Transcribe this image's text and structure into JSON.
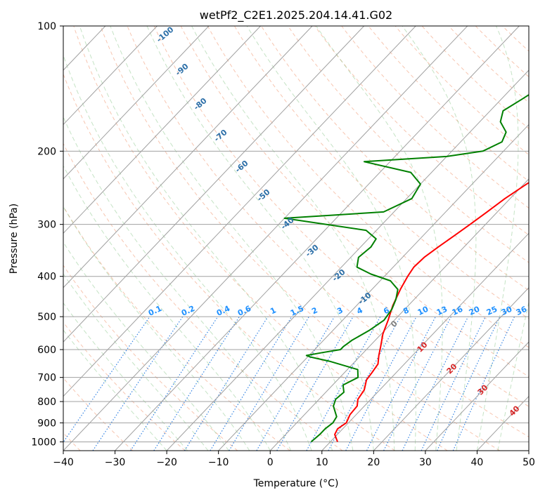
{
  "chart_data": {
    "type": "line",
    "title": "wetPf2_C2E1.2025.204.14.41.G02",
    "xlabel": "Temperature (°C)",
    "ylabel": "Pressure (hPa)",
    "xlim": [
      -40,
      50
    ],
    "ylim": [
      1050,
      100
    ],
    "y_scale": "log",
    "x_ticks": [
      -40,
      -30,
      -20,
      -10,
      0,
      10,
      20,
      30,
      40,
      50
    ],
    "y_ticks": [
      100,
      200,
      300,
      400,
      500,
      600,
      700,
      800,
      900,
      1000
    ],
    "grid": true,
    "series": [
      {
        "color": "#ff0000",
        "points": [
          [
            11.4,
            1000
          ],
          [
            9.5,
            960
          ],
          [
            9.0,
            930
          ],
          [
            9.6,
            900
          ],
          [
            8.8,
            860
          ],
          [
            8.6,
            820
          ],
          [
            7.5,
            790
          ],
          [
            7.0,
            750
          ],
          [
            5.6,
            710
          ],
          [
            5.3,
            680
          ],
          [
            4.9,
            650
          ],
          [
            3.5,
            620
          ],
          [
            2.2,
            590
          ],
          [
            0.3,
            550
          ],
          [
            -1.2,
            510
          ],
          [
            -3.0,
            470
          ],
          [
            -4.5,
            430
          ],
          [
            -5.5,
            400
          ],
          [
            -6.0,
            380
          ],
          [
            -5.8,
            360
          ],
          [
            -5.0,
            340
          ],
          [
            -4.0,
            320
          ],
          [
            -3.0,
            300
          ],
          [
            -2.0,
            280
          ],
          [
            -1.0,
            260
          ],
          [
            0.5,
            240
          ],
          [
            2.0,
            225
          ],
          [
            5.0,
            210
          ],
          [
            7.0,
            200
          ],
          [
            8.5,
            185
          ],
          [
            10.0,
            170
          ],
          [
            12.0,
            155
          ],
          [
            14.0,
            140
          ],
          [
            16.5,
            125
          ],
          [
            20.0,
            115
          ],
          [
            21.0,
            110
          ],
          [
            21.5,
            105
          ],
          [
            23.0,
            100
          ]
        ]
      },
      {
        "color": "#008000",
        "points": [
          [
            6.3,
            1000
          ],
          [
            6.6,
            960
          ],
          [
            6.6,
            930
          ],
          [
            7.0,
            900
          ],
          [
            6.6,
            870
          ],
          [
            4.0,
            820
          ],
          [
            3.2,
            790
          ],
          [
            3.5,
            760
          ],
          [
            2.0,
            730
          ],
          [
            3.5,
            700
          ],
          [
            2.0,
            670
          ],
          [
            -5.0,
            640
          ],
          [
            -9.5,
            625
          ],
          [
            -10.5,
            620
          ],
          [
            -8.0,
            610
          ],
          [
            -5.0,
            600
          ],
          [
            -5.0,
            590
          ],
          [
            -4.5,
            570
          ],
          [
            -3.0,
            540
          ],
          [
            -2.0,
            510
          ],
          [
            -2.5,
            480
          ],
          [
            -3.5,
            455
          ],
          [
            -5.0,
            430
          ],
          [
            -8.0,
            410
          ],
          [
            -13.0,
            395
          ],
          [
            -17.0,
            380
          ],
          [
            -18.5,
            360
          ],
          [
            -18.0,
            340
          ],
          [
            -18.5,
            325
          ],
          [
            -22.0,
            310
          ],
          [
            -40.0,
            290
          ],
          [
            -22.0,
            280
          ],
          [
            -19.0,
            260
          ],
          [
            -20.0,
            240
          ],
          [
            -24.0,
            225
          ],
          [
            -35.0,
            212
          ],
          [
            -20.0,
            206
          ],
          [
            -14.0,
            200
          ],
          [
            -12.0,
            190
          ],
          [
            -13.0,
            180
          ],
          [
            -16.0,
            170
          ],
          [
            -17.5,
            160
          ],
          [
            -16.0,
            150
          ],
          [
            -14.5,
            140
          ],
          [
            -15.0,
            130
          ],
          [
            -14.0,
            120
          ],
          [
            -12.0,
            110
          ],
          [
            -8.5,
            100
          ]
        ]
      }
    ],
    "dry_adiabat_labels": [
      "-100",
      "-90",
      "-80",
      "-70",
      "-60",
      "-50",
      "-40",
      "-30",
      "-20",
      "-10"
    ],
    "mixing_ratio_labels": [
      "0.1",
      "0.2",
      "0.4",
      "0.6",
      "1",
      "1.5",
      "2",
      "3",
      "4",
      "6",
      "8",
      "10",
      "13",
      "16",
      "20",
      "25",
      "30",
      "36"
    ],
    "moist_adiabat_labels": [
      "0",
      "10",
      "20",
      "30",
      "40"
    ]
  }
}
